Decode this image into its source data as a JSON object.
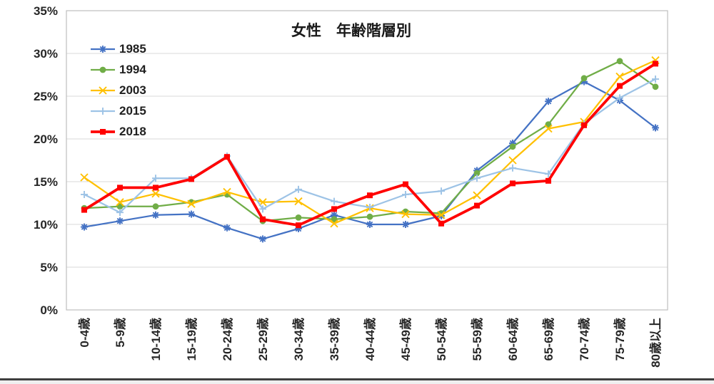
{
  "title": "女性　年齢階層別",
  "colors": {
    "gridline": "#D9D9D9",
    "frame": "#BFBFBF",
    "axis_text": "#262626",
    "title_text": "#1a1a1a"
  },
  "chart_data": {
    "type": "line",
    "title": "女性　年齢階層別",
    "categories": [
      "0-4歳",
      "5-9歳",
      "10-14歳",
      "15-19歳",
      "20-24歳",
      "25-29歳",
      "30-34歳",
      "35-39歳",
      "40-44歳",
      "45-49歳",
      "50-54歳",
      "55-59歳",
      "60-64歳",
      "65-69歳",
      "70-74歳",
      "75-79歳",
      "80歳以上"
    ],
    "series": [
      {
        "name": "1985",
        "color": "#4472C4",
        "marker": "star",
        "line_width": 2.25,
        "values": [
          9.7,
          10.4,
          11.1,
          11.2,
          9.6,
          8.3,
          9.5,
          11.1,
          10.0,
          10.0,
          11.0,
          16.3,
          19.5,
          24.4,
          26.7,
          24.5,
          21.3
        ]
      },
      {
        "name": "1994",
        "color": "#70AD47",
        "marker": "circle",
        "line_width": 2.25,
        "values": [
          11.9,
          12.1,
          12.1,
          12.6,
          13.5,
          10.4,
          10.8,
          10.6,
          10.9,
          11.5,
          11.3,
          16.0,
          19.1,
          21.7,
          27.1,
          29.1,
          26.1
        ]
      },
      {
        "name": "2003",
        "color": "#FFC000",
        "marker": "x",
        "line_width": 2.25,
        "values": [
          15.5,
          12.6,
          13.6,
          12.4,
          13.8,
          12.6,
          12.7,
          10.1,
          11.9,
          11.2,
          11.1,
          13.4,
          17.5,
          21.2,
          22.0,
          27.3,
          29.2
        ]
      },
      {
        "name": "2015",
        "color": "#9DC3E6",
        "marker": "plus",
        "line_width": 2.25,
        "values": [
          13.5,
          11.4,
          15.4,
          15.4,
          18.0,
          11.8,
          14.1,
          12.7,
          12.0,
          13.5,
          13.9,
          15.4,
          16.6,
          15.9,
          21.8,
          24.8,
          27.0
        ]
      },
      {
        "name": "2018",
        "color": "#FF0000",
        "marker": "square",
        "line_width": 3.75,
        "values": [
          11.7,
          14.3,
          14.3,
          15.3,
          17.9,
          10.6,
          9.9,
          11.8,
          13.4,
          14.7,
          10.1,
          12.2,
          14.8,
          15.1,
          21.6,
          26.2,
          28.8
        ]
      }
    ],
    "ylim": [
      0,
      35
    ],
    "y_tick_step": 5,
    "y_ticks": [
      "0%",
      "5%",
      "10%",
      "15%",
      "20%",
      "25%",
      "30%",
      "35%"
    ],
    "grid": true,
    "legend_position": "top-left-inside"
  }
}
